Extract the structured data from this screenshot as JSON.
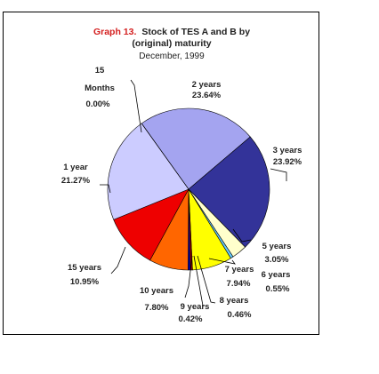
{
  "chart_data": {
    "type": "pie",
    "title_prefix": "Graph 13.",
    "title_rest": "Stock of TES A and B by",
    "title_line2": "(original) maturity",
    "subtitle": "December, 1999",
    "slices": [
      {
        "name": "2 years",
        "label": "2 years",
        "value_label": "23.64%",
        "value": 23.64,
        "color": "#a4a4f0"
      },
      {
        "name": "3 years",
        "label": "3 years",
        "value_label": "23.92%",
        "value": 23.92,
        "color": "#333399"
      },
      {
        "name": "5 years",
        "label": "5 years",
        "value_label": "3.05%",
        "value": 3.05,
        "color": "#ffffcc"
      },
      {
        "name": "6 years",
        "label": "6 years",
        "value_label": "0.55%",
        "value": 0.55,
        "color": "#66ccff"
      },
      {
        "name": "7 years",
        "label": "7 years",
        "value_label": "7.94%",
        "value": 7.94,
        "color": "#ffff00"
      },
      {
        "name": "8 years",
        "label": "8 years",
        "value_label": "0.46%",
        "value": 0.46,
        "color": "#990000"
      },
      {
        "name": "9 years",
        "label": "9 years",
        "value_label": "0.42%",
        "value": 0.42,
        "color": "#0000cc"
      },
      {
        "name": "10 years",
        "label": "10 years",
        "value_label": "7.80%",
        "value": 7.8,
        "color": "#ff6600"
      },
      {
        "name": "15 years",
        "label": "15 years",
        "value_label": "10.95%",
        "value": 10.95,
        "color": "#ee0000"
      },
      {
        "name": "1 year",
        "label": "1 year",
        "value_label": "21.27%",
        "value": 21.27,
        "color": "#ccccff"
      },
      {
        "name": "15 Months",
        "label": "15 Months",
        "value_label": "0.00%",
        "value": 0.0,
        "color": "#000080"
      }
    ]
  }
}
